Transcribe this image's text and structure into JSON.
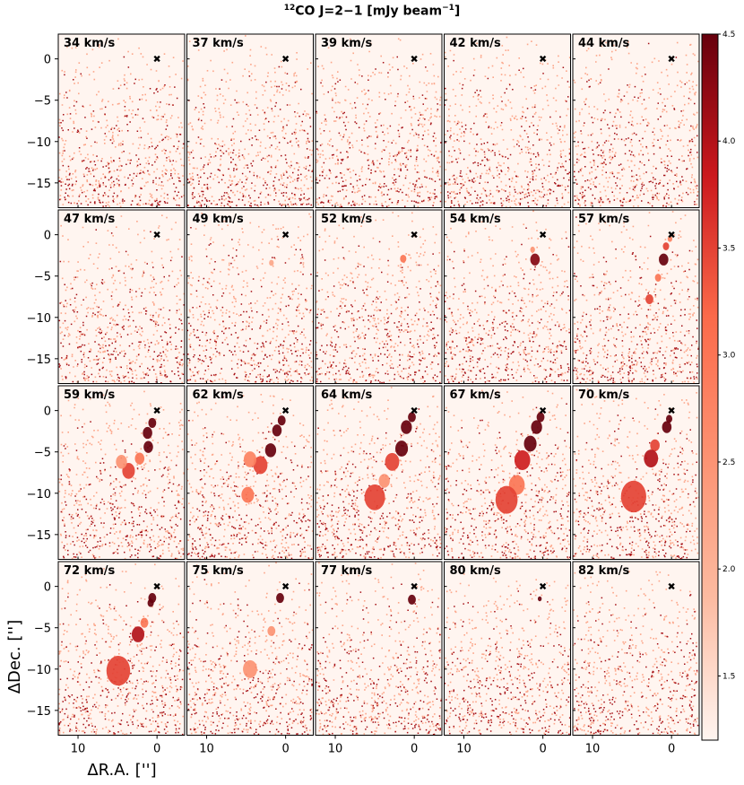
{
  "title": {
    "sup_prefix": "12",
    "main": "CO J=2−1 [mJy beam",
    "sup_unit": "−1",
    "close": "]"
  },
  "chart_data": {
    "type": "heatmap",
    "subtype": "channel-map grid",
    "colormap": "Reds",
    "units": "mJy beam^-1",
    "velocity_units": "km/s",
    "grid": {
      "rows": 4,
      "cols": 5
    },
    "xlabel": "ΔR.A. ['']",
    "ylabel": "ΔDec. ['']",
    "xlim": [
      12.5,
      -3.5
    ],
    "ylim": [
      -18,
      3
    ],
    "xticks": [
      10,
      0
    ],
    "yticks": [
      0,
      -5,
      -10,
      -15
    ],
    "colorbar": {
      "range": [
        1.2,
        4.5
      ],
      "ticks": [
        1.5,
        2.0,
        2.5,
        3.0,
        3.5,
        4.0,
        4.5
      ],
      "tick_labels": [
        "1.5",
        "2.0",
        "2.5",
        "3.0",
        "3.5",
        "4.0",
        "4.5"
      ]
    },
    "source_marker": {
      "symbol": "✖",
      "x": 0,
      "y": 0
    },
    "channels": [
      {
        "label": "34 km/s",
        "velocity": 34,
        "emission": []
      },
      {
        "label": "37 km/s",
        "velocity": 37,
        "emission": []
      },
      {
        "label": "39 km/s",
        "velocity": 39,
        "emission": []
      },
      {
        "label": "42 km/s",
        "velocity": 42,
        "emission": []
      },
      {
        "label": "44 km/s",
        "velocity": 44,
        "emission": []
      },
      {
        "label": "47 km/s",
        "velocity": 47,
        "emission": []
      },
      {
        "label": "49 km/s",
        "velocity": 49,
        "emission": [
          {
            "x": 1.8,
            "y": -3.4,
            "r": 0.3,
            "v": 2.2
          }
        ]
      },
      {
        "label": "52 km/s",
        "velocity": 52,
        "emission": [
          {
            "x": 1.4,
            "y": -2.9,
            "r": 0.4,
            "v": 3.0
          }
        ]
      },
      {
        "label": "54 km/s",
        "velocity": 54,
        "emission": [
          {
            "x": 1.0,
            "y": -3.0,
            "r": 0.6,
            "v": 4.3
          },
          {
            "x": 1.3,
            "y": -1.8,
            "r": 0.3,
            "v": 2.5
          }
        ]
      },
      {
        "label": "57 km/s",
        "velocity": 57,
        "emission": [
          {
            "x": 1.0,
            "y": -3.0,
            "r": 0.6,
            "v": 4.5
          },
          {
            "x": 0.7,
            "y": -1.4,
            "r": 0.4,
            "v": 3.5
          },
          {
            "x": 0.2,
            "y": -0.5,
            "r": 0.3,
            "v": 2.8
          },
          {
            "x": 1.7,
            "y": -5.2,
            "r": 0.4,
            "v": 3.0
          },
          {
            "x": 2.8,
            "y": -7.8,
            "r": 0.5,
            "v": 3.5
          }
        ]
      },
      {
        "label": "59 km/s",
        "velocity": 59,
        "emission": [
          {
            "x": 0.6,
            "y": -1.5,
            "r": 0.5,
            "v": 4.5
          },
          {
            "x": 1.2,
            "y": -2.7,
            "r": 0.6,
            "v": 4.5
          },
          {
            "x": 1.1,
            "y": -4.4,
            "r": 0.6,
            "v": 4.5
          },
          {
            "x": 2.2,
            "y": -5.8,
            "r": 0.6,
            "v": 3.0
          },
          {
            "x": 3.6,
            "y": -7.3,
            "r": 0.8,
            "v": 3.5
          },
          {
            "x": 4.5,
            "y": -6.2,
            "r": 0.7,
            "v": 2.5
          }
        ]
      },
      {
        "label": "62 km/s",
        "velocity": 62,
        "emission": [
          {
            "x": 0.5,
            "y": -1.2,
            "r": 0.5,
            "v": 4.5
          },
          {
            "x": 1.1,
            "y": -2.4,
            "r": 0.6,
            "v": 4.5
          },
          {
            "x": 1.9,
            "y": -4.8,
            "r": 0.7,
            "v": 4.5
          },
          {
            "x": 3.2,
            "y": -6.6,
            "r": 0.9,
            "v": 3.5
          },
          {
            "x": 4.5,
            "y": -5.9,
            "r": 0.8,
            "v": 2.8
          },
          {
            "x": 4.8,
            "y": -10.2,
            "r": 0.8,
            "v": 3.0
          }
        ]
      },
      {
        "label": "64 km/s",
        "velocity": 64,
        "emission": [
          {
            "x": 0.3,
            "y": -0.8,
            "r": 0.5,
            "v": 4.5
          },
          {
            "x": 1.0,
            "y": -2.0,
            "r": 0.7,
            "v": 4.5
          },
          {
            "x": 1.6,
            "y": -4.6,
            "r": 0.8,
            "v": 4.5
          },
          {
            "x": 2.8,
            "y": -6.2,
            "r": 0.9,
            "v": 3.5
          },
          {
            "x": 5.0,
            "y": -10.5,
            "r": 1.3,
            "v": 3.5
          },
          {
            "x": 3.8,
            "y": -8.5,
            "r": 0.7,
            "v": 2.5
          }
        ]
      },
      {
        "label": "67 km/s",
        "velocity": 67,
        "emission": [
          {
            "x": 0.3,
            "y": -0.8,
            "r": 0.5,
            "v": 4.5
          },
          {
            "x": 0.8,
            "y": -2.0,
            "r": 0.7,
            "v": 4.5
          },
          {
            "x": 1.6,
            "y": -4.0,
            "r": 0.8,
            "v": 4.5
          },
          {
            "x": 2.6,
            "y": -6.0,
            "r": 1.0,
            "v": 3.8
          },
          {
            "x": 3.3,
            "y": -9.0,
            "r": 1.0,
            "v": 3.0
          },
          {
            "x": 4.6,
            "y": -10.8,
            "r": 1.4,
            "v": 3.5
          }
        ]
      },
      {
        "label": "70 km/s",
        "velocity": 70,
        "emission": [
          {
            "x": 0.3,
            "y": -1.0,
            "r": 0.4,
            "v": 4.5
          },
          {
            "x": 0.6,
            "y": -2.0,
            "r": 0.6,
            "v": 4.5
          },
          {
            "x": 2.1,
            "y": -4.2,
            "r": 0.6,
            "v": 3.5
          },
          {
            "x": 2.6,
            "y": -5.8,
            "r": 0.9,
            "v": 4.0
          },
          {
            "x": 4.8,
            "y": -10.4,
            "r": 1.6,
            "v": 3.5
          }
        ]
      },
      {
        "label": "72 km/s",
        "velocity": 72,
        "emission": [
          {
            "x": 0.6,
            "y": -1.4,
            "r": 0.5,
            "v": 4.5
          },
          {
            "x": 0.8,
            "y": -2.0,
            "r": 0.4,
            "v": 4.5
          },
          {
            "x": 1.6,
            "y": -4.4,
            "r": 0.5,
            "v": 3.0
          },
          {
            "x": 2.4,
            "y": -5.8,
            "r": 0.8,
            "v": 4.0
          },
          {
            "x": 4.9,
            "y": -10.2,
            "r": 1.5,
            "v": 3.5
          }
        ]
      },
      {
        "label": "75 km/s",
        "velocity": 75,
        "emission": [
          {
            "x": 0.7,
            "y": -1.4,
            "r": 0.5,
            "v": 4.5
          },
          {
            "x": 1.8,
            "y": -5.4,
            "r": 0.5,
            "v": 2.5
          },
          {
            "x": 4.5,
            "y": -10.0,
            "r": 0.9,
            "v": 2.5
          }
        ]
      },
      {
        "label": "77 km/s",
        "velocity": 77,
        "emission": [
          {
            "x": 0.3,
            "y": -1.6,
            "r": 0.5,
            "v": 4.5
          }
        ]
      },
      {
        "label": "80 km/s",
        "velocity": 80,
        "emission": [
          {
            "x": 0.4,
            "y": -1.5,
            "r": 0.25,
            "v": 4.5
          }
        ]
      },
      {
        "label": "82 km/s",
        "velocity": 82,
        "emission": []
      }
    ]
  }
}
